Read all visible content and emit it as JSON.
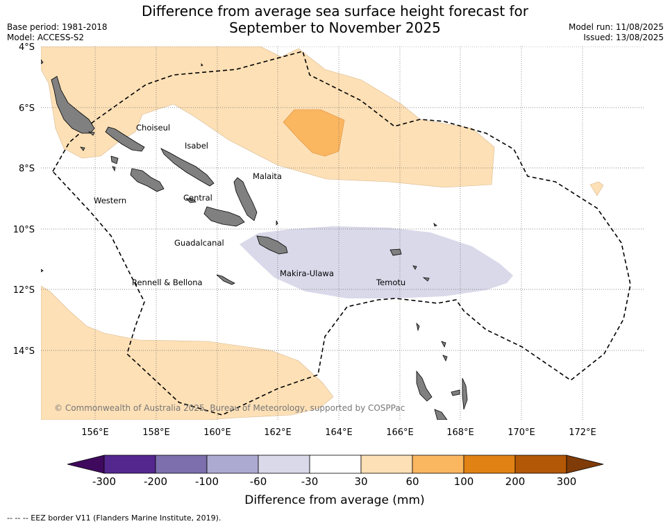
{
  "header": {
    "title_line1": "Difference from average sea surface height forecast for",
    "title_line2": "September to November 2025",
    "base_period": "Base period: 1981-2018",
    "model": "Model: ACCESS-S2",
    "model_run": "Model run: 11/08/2025",
    "issued": "Issued: 13/08/2025"
  },
  "map": {
    "lat_labels": [
      "4°S",
      "6°S",
      "8°S",
      "10°S",
      "12°S",
      "14°S"
    ],
    "lon_labels": [
      "156°E",
      "158°E",
      "160°E",
      "162°E",
      "164°E",
      "166°E",
      "168°E",
      "170°E",
      "172°E"
    ],
    "provinces": [
      "Choiseul",
      "Isabel",
      "Malaita",
      "Western",
      "Central",
      "Guadalcanal",
      "Rennell & Bellona",
      "Makira-Ulawa",
      "Temotu"
    ],
    "copyright": "© Commonwealth of Australia 2025, Bureau of Meteorology, supported by COSPPac",
    "colors": {
      "land": "#808080",
      "ocean": "#ffffff"
    }
  },
  "colorbar": {
    "title": "Difference from average (mm)",
    "labels": [
      "-300",
      "-200",
      "-100",
      "-60",
      "-30",
      "30",
      "60",
      "100",
      "200",
      "300"
    ],
    "colors": [
      "#3f0a5e",
      "#54278f",
      "#7d6fad",
      "#adaad2",
      "#d9d9ea",
      "#ffffff",
      "#fde0b6",
      "#fbb660",
      "#e08214",
      "#b35806",
      "#7f3b08"
    ]
  },
  "footer": {
    "legend": "--  --  -- EEZ border V11 (Flanders Marine Institute, 2019)."
  }
}
